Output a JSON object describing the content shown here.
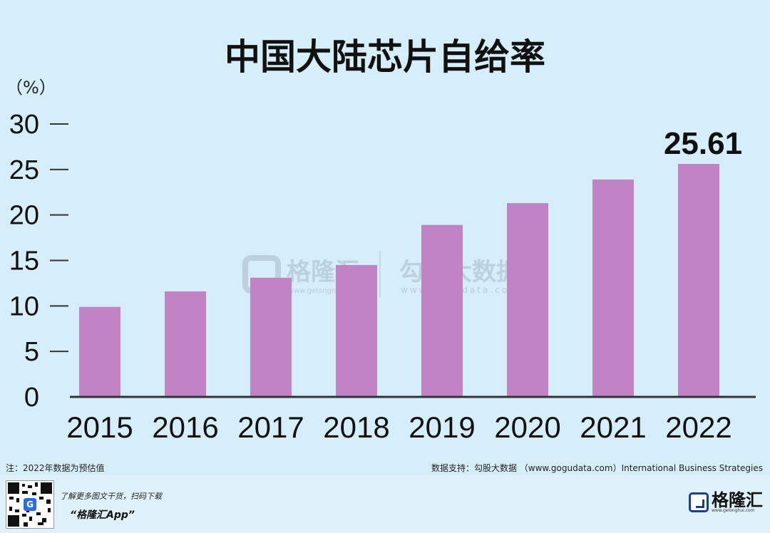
{
  "chart_data": {
    "type": "bar",
    "title": "中国大陆芯片自给率",
    "unit_label": "（%）",
    "categories": [
      "2015",
      "2016",
      "2017",
      "2018",
      "2019",
      "2020",
      "2021",
      "2022"
    ],
    "values": [
      9.9,
      11.6,
      13.1,
      14.5,
      18.9,
      21.3,
      23.9,
      25.61
    ],
    "data_labels": {
      "2022": "25.61"
    },
    "ylim": [
      0,
      30
    ],
    "yticks": [
      0,
      5,
      10,
      15,
      20,
      25,
      30
    ],
    "xlabel": "",
    "ylabel": "",
    "grid": false,
    "bar_color": "#c084c6"
  },
  "watermark": {
    "brand_left": "格隆汇",
    "url_left": "www.gelonghui.com",
    "brand_right": "勾股大数据",
    "url_right": "www.gogudata.com"
  },
  "footer": {
    "note": "注：2022年数据为预估值",
    "source": "数据支持：勾股大数据 （www.gogudata.com）International Business Strategies",
    "promo_line1": "了解更多图文干货，扫码下载",
    "promo_line2": "“格隆汇App”",
    "qr_glyph": "G",
    "brand_name": "格隆汇",
    "brand_url": "www.gelonghui.com"
  },
  "colors": {
    "background": "#d6eefa",
    "bar": "#c084c6",
    "axis": "#333333",
    "text": "#111111"
  }
}
